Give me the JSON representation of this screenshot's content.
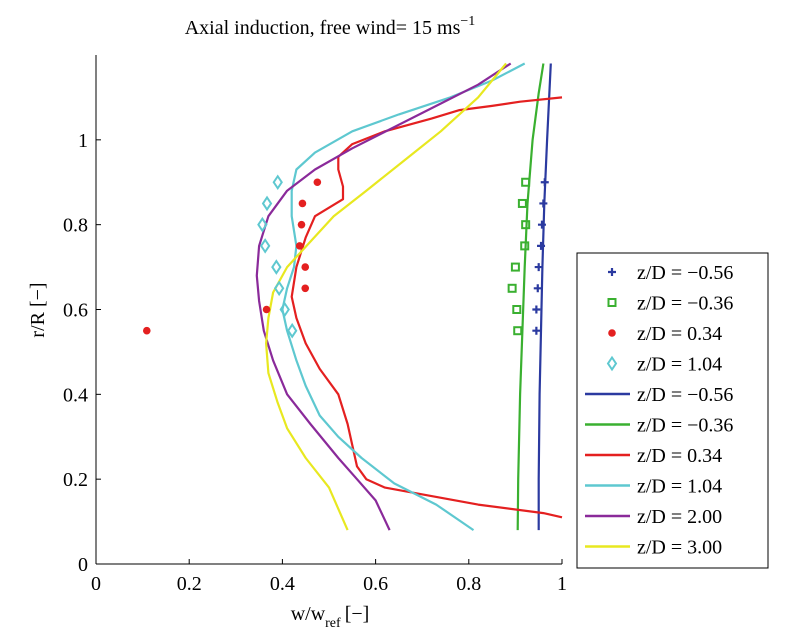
{
  "chart_data": {
    "type": "line",
    "title": "Axial induction, free wind= 15 ms",
    "title_superscript": "−1",
    "xlabel": "w/w",
    "xlabel_subscript": "ref",
    "xlabel_unit": "[−]",
    "ylabel": "r/R [−]",
    "xlim": [
      0,
      1
    ],
    "ylim": [
      0,
      1.2
    ],
    "xticks": [
      {
        "value": 0,
        "label": "0"
      },
      {
        "value": 0.2,
        "label": "0.2"
      },
      {
        "value": 0.4,
        "label": "0.4"
      },
      {
        "value": 0.6,
        "label": "0.6"
      },
      {
        "value": 0.8,
        "label": "0.8"
      },
      {
        "value": 1,
        "label": "1"
      }
    ],
    "yticks": [
      {
        "value": 0,
        "label": "0"
      },
      {
        "value": 0.2,
        "label": "0.2"
      },
      {
        "value": 0.4,
        "label": "0.4"
      },
      {
        "value": 0.6,
        "label": "0.6"
      },
      {
        "value": 0.8,
        "label": "0.8"
      },
      {
        "value": 1,
        "label": "1"
      }
    ],
    "grid": false,
    "legend_position": "right",
    "marker_series": [
      {
        "name": "z/D = −0.56",
        "marker": "plus",
        "color": "#2b3aa0",
        "points": [
          [
            0.963,
            0.9
          ],
          [
            0.96,
            0.85
          ],
          [
            0.957,
            0.8
          ],
          [
            0.955,
            0.75
          ],
          [
            0.95,
            0.7
          ],
          [
            0.948,
            0.65
          ],
          [
            0.945,
            0.6
          ],
          [
            0.945,
            0.55
          ]
        ]
      },
      {
        "name": "z/D = −0.36",
        "marker": "square",
        "color": "#3ab030",
        "points": [
          [
            0.922,
            0.9
          ],
          [
            0.915,
            0.85
          ],
          [
            0.922,
            0.8
          ],
          [
            0.92,
            0.75
          ],
          [
            0.9,
            0.7
          ],
          [
            0.893,
            0.65
          ],
          [
            0.903,
            0.6
          ],
          [
            0.905,
            0.55
          ]
        ]
      },
      {
        "name": "z/D =  0.34",
        "marker": "dot",
        "color": "#e42020",
        "points": [
          [
            0.475,
            0.9
          ],
          [
            0.443,
            0.85
          ],
          [
            0.441,
            0.8
          ],
          [
            0.437,
            0.75
          ],
          [
            0.449,
            0.7
          ],
          [
            0.449,
            0.65
          ],
          [
            0.366,
            0.6
          ],
          [
            0.109,
            0.55
          ]
        ]
      },
      {
        "name": "z/D =  1.04",
        "marker": "diamond",
        "color": "#5ec8d0",
        "points": [
          [
            0.39,
            0.9
          ],
          [
            0.367,
            0.85
          ],
          [
            0.357,
            0.8
          ],
          [
            0.363,
            0.75
          ],
          [
            0.387,
            0.7
          ],
          [
            0.393,
            0.65
          ],
          [
            0.405,
            0.6
          ],
          [
            0.421,
            0.55
          ]
        ]
      }
    ],
    "line_series": [
      {
        "name": "z/D = −0.56",
        "color": "#2b3aa0",
        "points": [
          [
            0.95,
            0.08
          ],
          [
            0.95,
            0.2
          ],
          [
            0.952,
            0.4
          ],
          [
            0.955,
            0.55
          ],
          [
            0.958,
            0.7
          ],
          [
            0.962,
            0.85
          ],
          [
            0.968,
            1.0
          ],
          [
            0.976,
            1.18
          ]
        ]
      },
      {
        "name": "z/D = −0.36",
        "color": "#3ab030",
        "points": [
          [
            0.905,
            0.08
          ],
          [
            0.906,
            0.2
          ],
          [
            0.91,
            0.4
          ],
          [
            0.915,
            0.55
          ],
          [
            0.92,
            0.7
          ],
          [
            0.926,
            0.85
          ],
          [
            0.937,
            1.0
          ],
          [
            0.95,
            1.11
          ],
          [
            0.96,
            1.18
          ]
        ]
      },
      {
        "name": "z/D =  0.34",
        "color": "#e42020",
        "points": [
          [
            1.0,
            0.11
          ],
          [
            0.96,
            0.12
          ],
          [
            0.82,
            0.14
          ],
          [
            0.62,
            0.18
          ],
          [
            0.58,
            0.2
          ],
          [
            0.56,
            0.23
          ],
          [
            0.55,
            0.28
          ],
          [
            0.54,
            0.33
          ],
          [
            0.52,
            0.4
          ],
          [
            0.48,
            0.46
          ],
          [
            0.45,
            0.52
          ],
          [
            0.43,
            0.58
          ],
          [
            0.42,
            0.63
          ],
          [
            0.43,
            0.7
          ],
          [
            0.45,
            0.77
          ],
          [
            0.47,
            0.82
          ],
          [
            0.53,
            0.86
          ],
          [
            0.53,
            0.89
          ],
          [
            0.52,
            0.93
          ],
          [
            0.52,
            0.96
          ],
          [
            0.55,
            0.99
          ],
          [
            0.62,
            1.02
          ],
          [
            0.72,
            1.05
          ],
          [
            0.78,
            1.07
          ],
          [
            0.85,
            1.08
          ],
          [
            0.91,
            1.09
          ],
          [
            1.0,
            1.1
          ]
        ]
      },
      {
        "name": "z/D =  1.04",
        "color": "#5ec8d0",
        "points": [
          [
            0.81,
            0.08
          ],
          [
            0.73,
            0.14
          ],
          [
            0.64,
            0.19
          ],
          [
            0.57,
            0.25
          ],
          [
            0.52,
            0.3
          ],
          [
            0.48,
            0.35
          ],
          [
            0.45,
            0.42
          ],
          [
            0.43,
            0.48
          ],
          [
            0.41,
            0.55
          ],
          [
            0.4,
            0.6
          ],
          [
            0.41,
            0.65
          ],
          [
            0.425,
            0.7
          ],
          [
            0.43,
            0.75
          ],
          [
            0.42,
            0.82
          ],
          [
            0.42,
            0.88
          ],
          [
            0.43,
            0.93
          ],
          [
            0.47,
            0.97
          ],
          [
            0.55,
            1.02
          ],
          [
            0.65,
            1.06
          ],
          [
            0.76,
            1.1
          ],
          [
            0.85,
            1.14
          ],
          [
            0.92,
            1.18
          ]
        ]
      },
      {
        "name": "z/D =  2.00",
        "color": "#8a2a9a",
        "points": [
          [
            0.63,
            0.08
          ],
          [
            0.6,
            0.15
          ],
          [
            0.56,
            0.2
          ],
          [
            0.52,
            0.25
          ],
          [
            0.46,
            0.33
          ],
          [
            0.41,
            0.4
          ],
          [
            0.38,
            0.48
          ],
          [
            0.36,
            0.55
          ],
          [
            0.35,
            0.62
          ],
          [
            0.345,
            0.68
          ],
          [
            0.35,
            0.75
          ],
          [
            0.37,
            0.82
          ],
          [
            0.41,
            0.88
          ],
          [
            0.47,
            0.93
          ],
          [
            0.55,
            0.98
          ],
          [
            0.64,
            1.03
          ],
          [
            0.73,
            1.08
          ],
          [
            0.82,
            1.13
          ],
          [
            0.89,
            1.18
          ]
        ]
      },
      {
        "name": "z/D =  3.00",
        "color": "#e8e820",
        "points": [
          [
            0.54,
            0.08
          ],
          [
            0.5,
            0.18
          ],
          [
            0.45,
            0.25
          ],
          [
            0.41,
            0.32
          ],
          [
            0.39,
            0.38
          ],
          [
            0.37,
            0.45
          ],
          [
            0.365,
            0.52
          ],
          [
            0.37,
            0.58
          ],
          [
            0.38,
            0.64
          ],
          [
            0.41,
            0.7
          ],
          [
            0.46,
            0.76
          ],
          [
            0.51,
            0.82
          ],
          [
            0.58,
            0.88
          ],
          [
            0.66,
            0.95
          ],
          [
            0.74,
            1.02
          ],
          [
            0.82,
            1.1
          ],
          [
            0.88,
            1.18
          ]
        ]
      }
    ]
  }
}
